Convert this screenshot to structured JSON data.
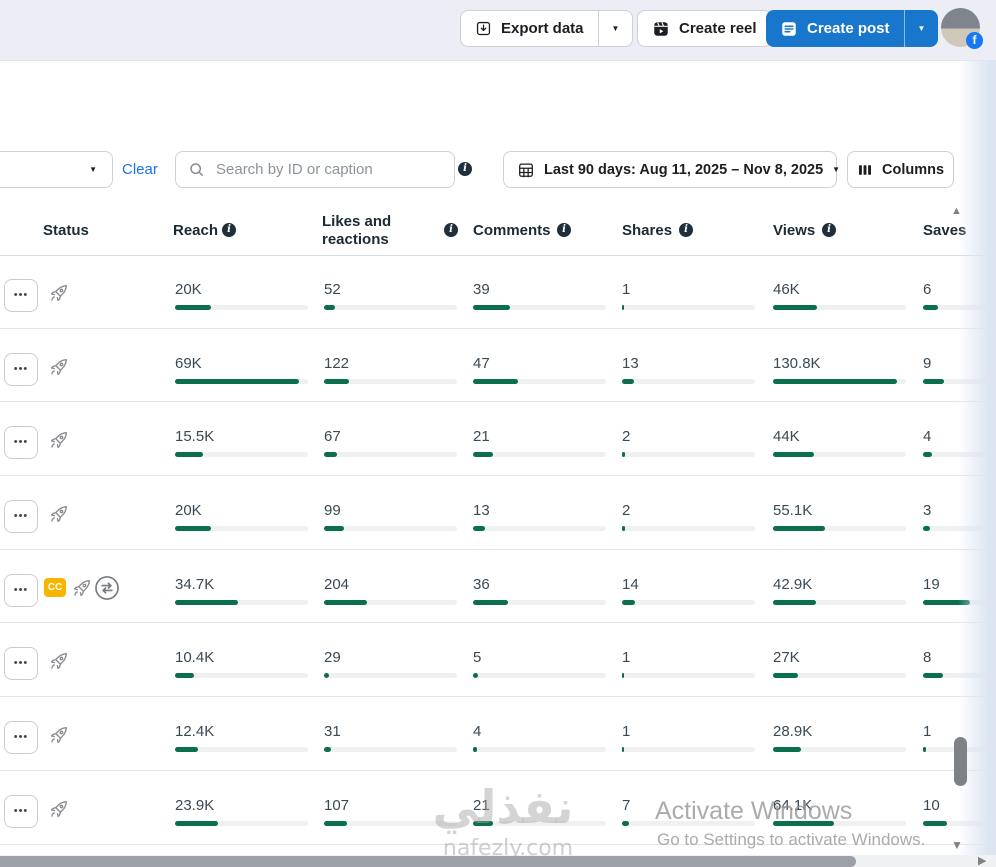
{
  "topbar": {
    "export_label": "Export data",
    "create_reel_label": "Create reel",
    "create_post_label": "Create post"
  },
  "filters": {
    "clear_label": "Clear",
    "search_placeholder": "Search by ID or caption",
    "date_range_label": "Last 90 days: Aug 11, 2025 – Nov 8, 2025",
    "columns_label": "Columns"
  },
  "table": {
    "headers": {
      "status": "Status",
      "reach": "Reach",
      "likes": "Likes and reactions",
      "comments": "Comments",
      "shares": "Shares",
      "views": "Views",
      "saves": "Saves"
    },
    "badges": {
      "cc": "CC"
    },
    "rows": [
      {
        "flags": {
          "cc": false,
          "swap": false
        },
        "metrics": [
          {
            "value": "20K",
            "pct": 27
          },
          {
            "value": "52",
            "pct": 8
          },
          {
            "value": "39",
            "pct": 28
          },
          {
            "value": "1",
            "pct": 1
          },
          {
            "value": "46K",
            "pct": 33
          },
          {
            "value": "6",
            "pct": 11
          }
        ]
      },
      {
        "flags": {
          "cc": false,
          "swap": false
        },
        "metrics": [
          {
            "value": "69K",
            "pct": 93
          },
          {
            "value": "122",
            "pct": 19
          },
          {
            "value": "47",
            "pct": 34
          },
          {
            "value": "13",
            "pct": 9
          },
          {
            "value": "130.8K",
            "pct": 93
          },
          {
            "value": "9",
            "pct": 16
          }
        ]
      },
      {
        "flags": {
          "cc": false,
          "swap": false
        },
        "metrics": [
          {
            "value": "15.5K",
            "pct": 21
          },
          {
            "value": "67",
            "pct": 10
          },
          {
            "value": "21",
            "pct": 15
          },
          {
            "value": "2",
            "pct": 2
          },
          {
            "value": "44K",
            "pct": 31
          },
          {
            "value": "4",
            "pct": 7
          }
        ]
      },
      {
        "flags": {
          "cc": false,
          "swap": false
        },
        "metrics": [
          {
            "value": "20K",
            "pct": 27
          },
          {
            "value": "99",
            "pct": 15
          },
          {
            "value": "13",
            "pct": 9
          },
          {
            "value": "2",
            "pct": 2
          },
          {
            "value": "55.1K",
            "pct": 39
          },
          {
            "value": "3",
            "pct": 5
          }
        ]
      },
      {
        "flags": {
          "cc": true,
          "swap": true
        },
        "metrics": [
          {
            "value": "34.7K",
            "pct": 47
          },
          {
            "value": "204",
            "pct": 32
          },
          {
            "value": "36",
            "pct": 26
          },
          {
            "value": "14",
            "pct": 10
          },
          {
            "value": "42.9K",
            "pct": 32
          },
          {
            "value": "19",
            "pct": 35
          }
        ]
      },
      {
        "flags": {
          "cc": false,
          "swap": false
        },
        "metrics": [
          {
            "value": "10.4K",
            "pct": 14
          },
          {
            "value": "29",
            "pct": 4
          },
          {
            "value": "5",
            "pct": 4
          },
          {
            "value": "1",
            "pct": 1
          },
          {
            "value": "27K",
            "pct": 19
          },
          {
            "value": "8",
            "pct": 15
          }
        ]
      },
      {
        "flags": {
          "cc": false,
          "swap": false
        },
        "metrics": [
          {
            "value": "12.4K",
            "pct": 17
          },
          {
            "value": "31",
            "pct": 5
          },
          {
            "value": "4",
            "pct": 3
          },
          {
            "value": "1",
            "pct": 1
          },
          {
            "value": "28.9K",
            "pct": 21
          },
          {
            "value": "1",
            "pct": 2
          }
        ]
      },
      {
        "flags": {
          "cc": false,
          "swap": false
        },
        "metrics": [
          {
            "value": "23.9K",
            "pct": 32
          },
          {
            "value": "107",
            "pct": 17
          },
          {
            "value": "21",
            "pct": 15
          },
          {
            "value": "7",
            "pct": 5
          },
          {
            "value": "64.1K",
            "pct": 46
          },
          {
            "value": "10",
            "pct": 18
          }
        ]
      }
    ]
  },
  "icons": {
    "caret_down": "▼",
    "more": "•••",
    "info": "i",
    "scroll_up": "▲",
    "scroll_down": "▼",
    "scroll_right": "▶",
    "facebook_f": "f"
  },
  "colors": {
    "accent_blue": "#1877cd",
    "link_blue": "#1b74e4",
    "bar_green": "#0b6e4f",
    "cc_yellow": "#f7b500"
  },
  "overlay": {
    "watermark_arabic": "نفذلي",
    "watermark_domain": "nafezly.com",
    "activate_line1": "Activate Windows",
    "activate_line2": "Go to Settings to activate Windows."
  }
}
